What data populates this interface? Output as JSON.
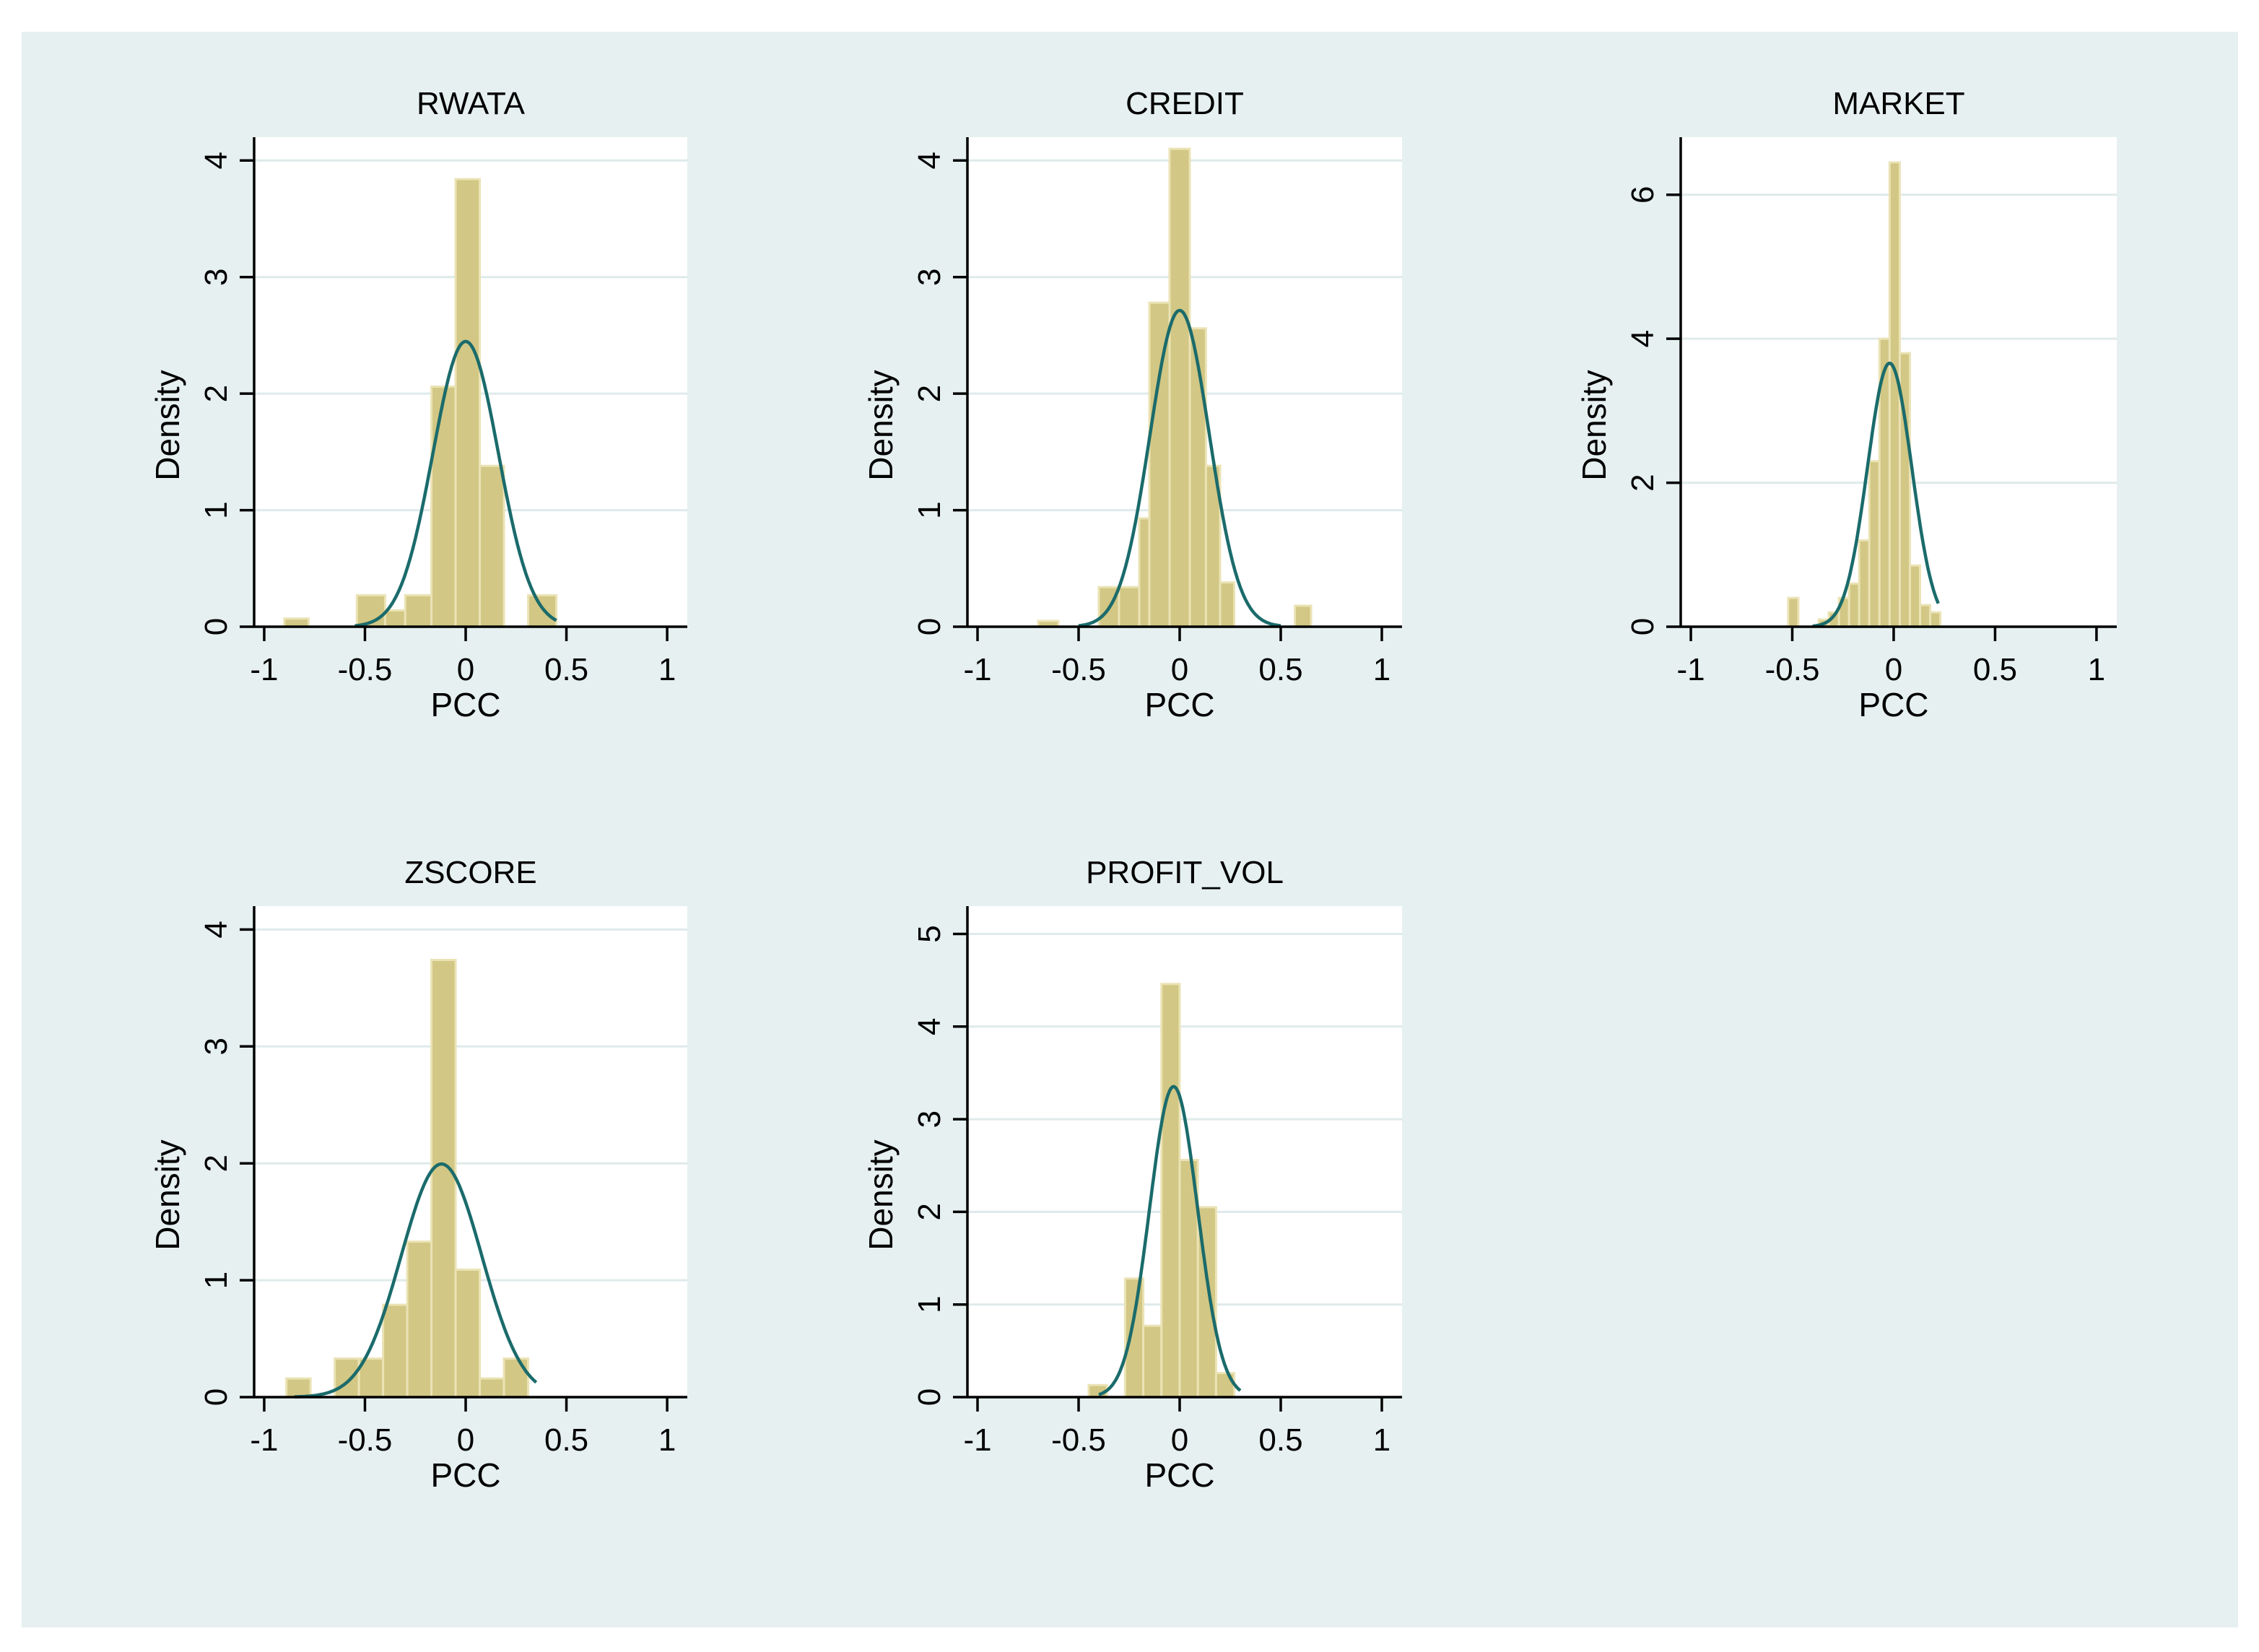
{
  "colors": {
    "page_background": "#ffffff",
    "graph_region": "#e6f0f0",
    "plot_region": "#ffffff",
    "gridline": "#dfeaea",
    "bar_fill": "#d2c784",
    "bar_stroke": "#ebe3b5",
    "normal_curve": "#1b6b6b",
    "axis": "#000000"
  },
  "chart_data": [
    {
      "type": "bar",
      "title": "RWATA",
      "xlabel": "PCC",
      "ylabel": "Density",
      "xlim": [
        -1.05,
        1.1
      ],
      "ylim": [
        0,
        4.2
      ],
      "xticks": [
        -1,
        -0.5,
        0,
        0.5,
        1
      ],
      "xtick_labels": [
        "-1",
        "-0.5",
        "0",
        "0.5",
        "1"
      ],
      "yticks": [
        0,
        1,
        2,
        3,
        4
      ],
      "ytick_labels": [
        "0",
        "1",
        "2",
        "3",
        "4"
      ],
      "grid": true,
      "bins": [
        {
          "x0": -0.9,
          "x1": -0.78,
          "density": 0.07
        },
        {
          "x0": -0.54,
          "x1": -0.4,
          "density": 0.27
        },
        {
          "x0": -0.4,
          "x1": -0.3,
          "density": 0.14
        },
        {
          "x0": -0.3,
          "x1": -0.17,
          "density": 0.27
        },
        {
          "x0": -0.17,
          "x1": -0.05,
          "density": 2.06
        },
        {
          "x0": -0.05,
          "x1": 0.07,
          "density": 3.84
        },
        {
          "x0": 0.07,
          "x1": 0.19,
          "density": 1.38
        },
        {
          "x0": 0.31,
          "x1": 0.45,
          "density": 0.27
        }
      ],
      "normal_curve": {
        "mean": 0.0,
        "sd": 0.163,
        "x_range": [
          -0.55,
          0.45
        ]
      }
    },
    {
      "type": "bar",
      "title": "CREDIT",
      "xlabel": "PCC",
      "ylabel": "Density",
      "xlim": [
        -1.05,
        1.1
      ],
      "ylim": [
        0,
        4.2
      ],
      "xticks": [
        -1,
        -0.5,
        0,
        0.5,
        1
      ],
      "xtick_labels": [
        "-1",
        "-0.5",
        "0",
        "0.5",
        "1"
      ],
      "yticks": [
        0,
        1,
        2,
        3,
        4
      ],
      "ytick_labels": [
        "0",
        "1",
        "2",
        "3",
        "4"
      ],
      "grid": true,
      "bins": [
        {
          "x0": -0.7,
          "x1": -0.6,
          "density": 0.05
        },
        {
          "x0": -0.4,
          "x1": -0.3,
          "density": 0.34
        },
        {
          "x0": -0.3,
          "x1": -0.2,
          "density": 0.34
        },
        {
          "x0": -0.2,
          "x1": -0.15,
          "density": 0.93
        },
        {
          "x0": -0.15,
          "x1": -0.05,
          "density": 2.78
        },
        {
          "x0": -0.05,
          "x1": 0.05,
          "density": 4.1
        },
        {
          "x0": 0.05,
          "x1": 0.13,
          "density": 2.56
        },
        {
          "x0": 0.13,
          "x1": 0.2,
          "density": 1.38
        },
        {
          "x0": 0.2,
          "x1": 0.27,
          "density": 0.38
        },
        {
          "x0": 0.57,
          "x1": 0.65,
          "density": 0.18
        }
      ],
      "normal_curve": {
        "mean": 0.0,
        "sd": 0.147,
        "x_range": [
          -0.5,
          0.5
        ]
      }
    },
    {
      "type": "bar",
      "title": "MARKET",
      "xlabel": "PCC",
      "ylabel": "Density",
      "xlim": [
        -1.05,
        1.1
      ],
      "ylim": [
        0,
        6.8
      ],
      "xticks": [
        -1,
        -0.5,
        0,
        0.5,
        1
      ],
      "xtick_labels": [
        "-1",
        "-0.5",
        "0",
        "0.5",
        "1"
      ],
      "yticks": [
        0,
        2,
        4,
        6
      ],
      "ytick_labels": [
        "0",
        "2",
        "4",
        "6"
      ],
      "grid": true,
      "bins": [
        {
          "x0": -0.52,
          "x1": -0.47,
          "density": 0.4
        },
        {
          "x0": -0.37,
          "x1": -0.32,
          "density": 0.1
        },
        {
          "x0": -0.32,
          "x1": -0.27,
          "density": 0.2
        },
        {
          "x0": -0.27,
          "x1": -0.22,
          "density": 0.4
        },
        {
          "x0": -0.22,
          "x1": -0.17,
          "density": 0.6
        },
        {
          "x0": -0.17,
          "x1": -0.12,
          "density": 1.2
        },
        {
          "x0": -0.12,
          "x1": -0.07,
          "density": 2.3
        },
        {
          "x0": -0.07,
          "x1": -0.02,
          "density": 4.0
        },
        {
          "x0": -0.02,
          "x1": 0.03,
          "density": 6.45
        },
        {
          "x0": 0.03,
          "x1": 0.08,
          "density": 3.8
        },
        {
          "x0": 0.08,
          "x1": 0.13,
          "density": 0.85
        },
        {
          "x0": 0.13,
          "x1": 0.18,
          "density": 0.3
        },
        {
          "x0": 0.18,
          "x1": 0.23,
          "density": 0.2
        }
      ],
      "normal_curve": {
        "mean": -0.02,
        "sd": 0.109,
        "x_range": [
          -0.4,
          0.22
        ]
      }
    },
    {
      "type": "bar",
      "title": "ZSCORE",
      "xlabel": "PCC",
      "ylabel": "Density",
      "xlim": [
        -1.05,
        1.1
      ],
      "ylim": [
        0,
        4.2
      ],
      "xticks": [
        -1,
        -0.5,
        0,
        0.5,
        1
      ],
      "xtick_labels": [
        "-1",
        "-0.5",
        "0",
        "0.5",
        "1"
      ],
      "yticks": [
        0,
        1,
        2,
        3,
        4
      ],
      "ytick_labels": [
        "0",
        "1",
        "2",
        "3",
        "4"
      ],
      "grid": true,
      "bins": [
        {
          "x0": -0.89,
          "x1": -0.77,
          "density": 0.16
        },
        {
          "x0": -0.65,
          "x1": -0.53,
          "density": 0.33
        },
        {
          "x0": -0.53,
          "x1": -0.41,
          "density": 0.33
        },
        {
          "x0": -0.41,
          "x1": -0.29,
          "density": 0.79
        },
        {
          "x0": -0.29,
          "x1": -0.17,
          "density": 1.33
        },
        {
          "x0": -0.17,
          "x1": -0.05,
          "density": 3.74
        },
        {
          "x0": -0.05,
          "x1": 0.07,
          "density": 1.09
        },
        {
          "x0": 0.07,
          "x1": 0.19,
          "density": 0.16
        },
        {
          "x0": 0.19,
          "x1": 0.31,
          "density": 0.33
        }
      ],
      "normal_curve": {
        "mean": -0.12,
        "sd": 0.2,
        "x_range": [
          -0.85,
          0.35
        ]
      }
    },
    {
      "type": "bar",
      "title": "PROFIT_VOL",
      "xlabel": "PCC",
      "ylabel": "Density",
      "xlim": [
        -1.05,
        1.1
      ],
      "ylim": [
        0,
        5.3
      ],
      "xticks": [
        -1,
        -0.5,
        0,
        0.5,
        1
      ],
      "xtick_labels": [
        "-1",
        "-0.5",
        "0",
        "0.5",
        "1"
      ],
      "yticks": [
        0,
        1,
        2,
        3,
        4,
        5
      ],
      "ytick_labels": [
        "0",
        "1",
        "2",
        "3",
        "4",
        "5"
      ],
      "grid": true,
      "bins": [
        {
          "x0": -0.45,
          "x1": -0.36,
          "density": 0.13
        },
        {
          "x0": -0.27,
          "x1": -0.18,
          "density": 1.28
        },
        {
          "x0": -0.18,
          "x1": -0.09,
          "density": 0.77
        },
        {
          "x0": -0.09,
          "x1": 0.0,
          "density": 4.46
        },
        {
          "x0": 0.0,
          "x1": 0.09,
          "density": 2.56
        },
        {
          "x0": 0.09,
          "x1": 0.18,
          "density": 2.05
        },
        {
          "x0": 0.18,
          "x1": 0.27,
          "density": 0.26
        }
      ],
      "normal_curve": {
        "mean": -0.03,
        "sd": 0.119,
        "x_range": [
          -0.4,
          0.3
        ]
      }
    }
  ]
}
